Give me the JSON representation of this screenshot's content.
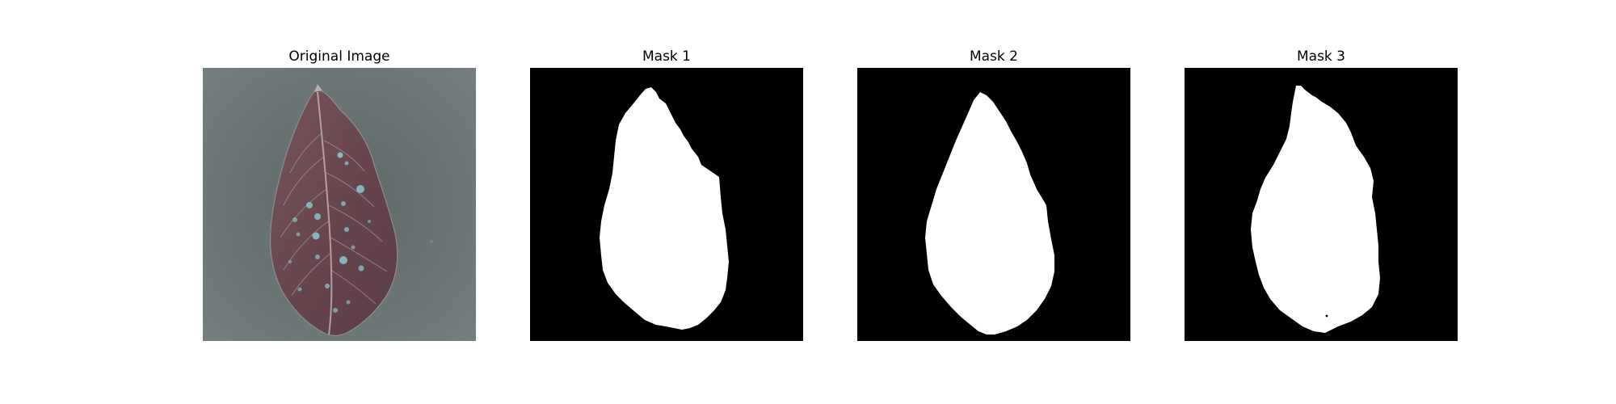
{
  "figure": {
    "panels": [
      {
        "title": "Original Image",
        "kind": "photo",
        "subject": "leaf"
      },
      {
        "title": "Mask 1",
        "kind": "mask"
      },
      {
        "title": "Mask 2",
        "kind": "mask"
      },
      {
        "title": "Mask 3",
        "kind": "mask"
      }
    ]
  },
  "colors": {
    "mask_background": "#000000",
    "mask_foreground": "#ffffff",
    "photo_background": "#5f6b6c",
    "leaf_fill": "#6e4a53",
    "leaf_vein": "#c9bcc0",
    "leaf_spot": "#8fd0d8"
  }
}
